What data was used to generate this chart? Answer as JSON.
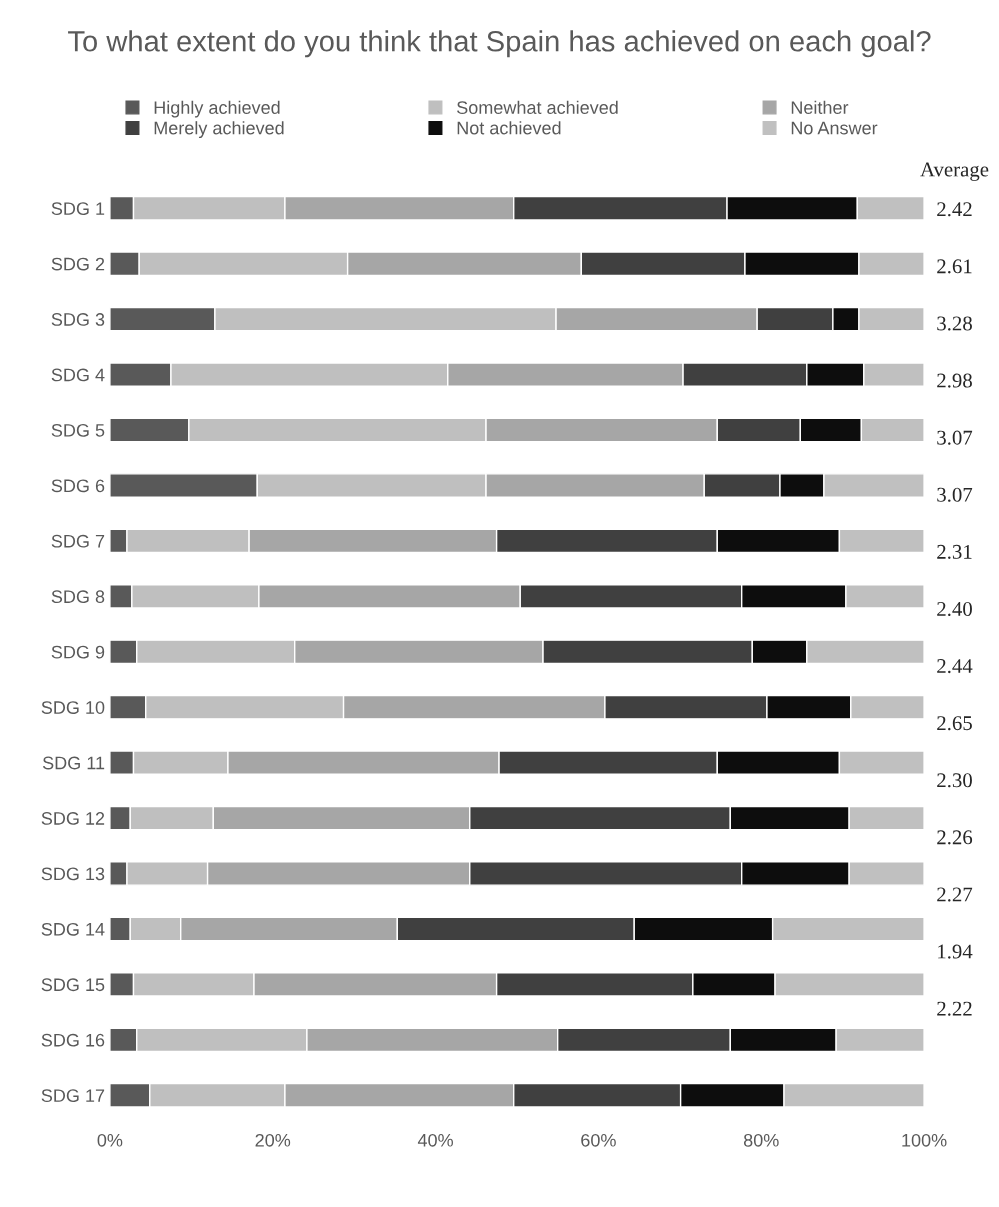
{
  "chart_data": {
    "type": "bar",
    "orientation": "horizontal",
    "stacked": true,
    "title": "To what extent do you think that Spain has achieved on each goal?",
    "categories": [
      "SDG 1",
      "SDG 2",
      "SDG 3",
      "SDG 4",
      "SDG 5",
      "SDG 6",
      "SDG 7",
      "SDG 8",
      "SDG 9",
      "SDG 10",
      "SDG 11",
      "SDG 12",
      "SDG 13",
      "SDG 14",
      "SDG 15",
      "SDG 16",
      "SDG 17"
    ],
    "series": [
      {
        "name": "Highly achieved",
        "color": "#595959",
        "values": [
          2.9,
          3.6,
          12.9,
          7.5,
          9.7,
          18.1,
          2.1,
          2.7,
          3.3,
          4.4,
          2.9,
          2.5,
          2.1,
          2.5,
          2.9,
          3.3,
          4.9
        ]
      },
      {
        "name": "Somewhat achieved",
        "color": "#bfbfbf",
        "values": [
          18.6,
          25.6,
          41.9,
          34.0,
          36.5,
          28.1,
          15.0,
          15.6,
          19.4,
          24.3,
          11.6,
          10.2,
          9.9,
          6.2,
          14.8,
          20.9,
          16.6
        ]
      },
      {
        "name": "Neither",
        "color": "#a6a6a6",
        "values": [
          28.1,
          28.7,
          24.7,
          28.9,
          28.4,
          26.8,
          30.4,
          32.1,
          30.5,
          32.1,
          33.3,
          31.5,
          32.2,
          26.6,
          29.8,
          30.8,
          28.1
        ]
      },
      {
        "name": "Merely achieved",
        "color": "#404040",
        "values": [
          26.2,
          20.1,
          9.3,
          15.2,
          10.2,
          9.3,
          27.1,
          27.2,
          25.7,
          19.9,
          26.8,
          32.0,
          33.4,
          29.1,
          24.1,
          21.2,
          20.5
        ]
      },
      {
        "name": "Not achieved",
        "color": "#0d0d0d",
        "values": [
          16.0,
          14.0,
          3.2,
          7.0,
          7.5,
          5.4,
          15.0,
          12.8,
          6.7,
          10.3,
          15.0,
          14.6,
          13.2,
          17.0,
          10.1,
          13.0,
          12.7
        ]
      },
      {
        "name": "No Answer",
        "color": "#c0c0c0",
        "values": [
          8.2,
          8.0,
          8.0,
          7.4,
          7.7,
          12.3,
          10.4,
          9.6,
          14.4,
          9.0,
          10.4,
          9.2,
          9.2,
          18.6,
          18.3,
          10.8,
          17.2
        ]
      }
    ],
    "xlim": [
      0,
      100
    ],
    "xticks": [
      {
        "value": 0,
        "label": "0%"
      },
      {
        "value": 20,
        "label": "20%"
      },
      {
        "value": 40,
        "label": "40%"
      },
      {
        "value": 60,
        "label": "60%"
      },
      {
        "value": 80,
        "label": "80%"
      },
      {
        "value": 100,
        "label": "100%"
      }
    ],
    "legend": "top",
    "annotations": [
      "Average",
      "2.42",
      "2.61",
      "3.28",
      "2.98",
      "3.07",
      "3.07",
      "2.31",
      "2.40",
      "2.44",
      "2.65",
      "2.30",
      "2.26",
      "2.27",
      "1.94",
      "2.22"
    ]
  }
}
